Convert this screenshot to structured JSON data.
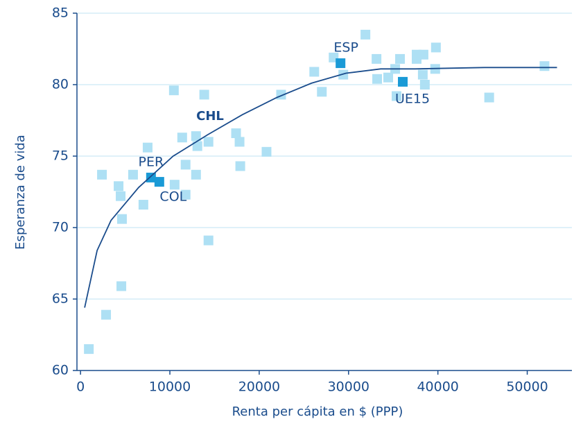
{
  "chart_data": {
    "type": "scatter",
    "x_label": "Renta per cápita en $ (PPP)",
    "y_label": "Esperanza de vida",
    "xlim": [
      -400,
      55000
    ],
    "ylim": [
      60,
      85
    ],
    "xticks": [
      0,
      10000,
      20000,
      30000,
      40000,
      50000
    ],
    "yticks": [
      60,
      65,
      70,
      75,
      80,
      85
    ],
    "grid": true,
    "series": [
      {
        "type": "scatter",
        "color": "#aee0f4",
        "x": [
          930,
          2860,
          2400,
          4260,
          4490,
          4640,
          4570,
          5880,
          7040,
          7510,
          10450,
          10530,
          11760,
          11760,
          11380,
          12930,
          13080,
          12930,
          13850,
          14320,
          14320,
          17410,
          17800,
          17880,
          20820,
          22450,
          26160,
          27010,
          28330,
          29410,
          31890,
          33130,
          33200,
          34440,
          35220,
          35760,
          35370,
          37620,
          38390,
          37620,
          38310,
          38540,
          39780,
          39700,
          45740,
          51930
        ],
        "y": [
          61.5,
          63.9,
          73.7,
          72.9,
          72.2,
          70.6,
          65.9,
          73.7,
          71.6,
          75.6,
          79.6,
          73.0,
          72.3,
          74.4,
          76.3,
          76.4,
          75.7,
          73.7,
          79.3,
          76.0,
          69.1,
          76.6,
          76.0,
          74.3,
          75.3,
          79.3,
          80.9,
          79.5,
          81.9,
          80.7,
          83.5,
          81.8,
          80.4,
          80.5,
          81.1,
          81.8,
          79.2,
          82.1,
          82.1,
          81.8,
          80.7,
          80.0,
          82.6,
          81.1,
          79.1,
          81.3
        ]
      },
      {
        "type": "scatter",
        "color": "#1a9ad6",
        "labels": [
          "PER",
          "COL",
          "ESP",
          "UE15"
        ],
        "x": [
          7890,
          8820,
          29100,
          36070
        ],
        "y": [
          73.5,
          73.2,
          81.5,
          80.2
        ]
      },
      {
        "type": "line",
        "color": "#1a4c8c",
        "x": [
          460,
          1860,
          3410,
          6500,
          10370,
          14240,
          18110,
          21980,
          25850,
          29720,
          33590,
          37460,
          45200,
          53330
        ],
        "y": [
          64.4,
          68.4,
          70.5,
          72.8,
          75.0,
          76.5,
          77.9,
          79.1,
          80.1,
          80.8,
          81.1,
          81.1,
          81.2,
          81.2
        ]
      }
    ],
    "annotations": [
      {
        "text": "CHL"
      }
    ]
  }
}
